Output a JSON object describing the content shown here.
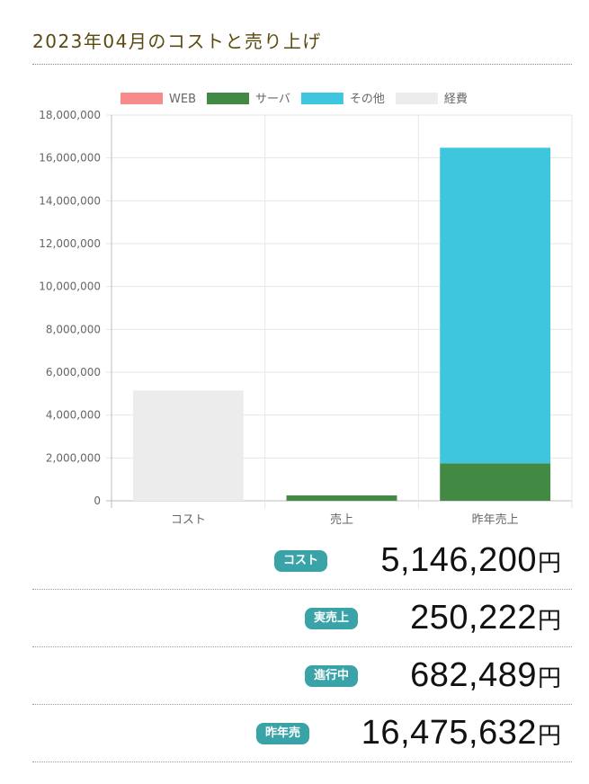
{
  "page": {
    "title": "2023年04月のコストと売り上げ"
  },
  "chart_data": {
    "type": "bar",
    "stacked": true,
    "categories": [
      "コスト",
      "売上",
      "昨年売上"
    ],
    "series": [
      {
        "name": "WEB",
        "color": "#f78b8b",
        "values": [
          0,
          0,
          0
        ]
      },
      {
        "name": "サーバ",
        "color": "#428a44",
        "values": [
          0,
          250222,
          1750000
        ]
      },
      {
        "name": "その他",
        "color": "#3ec6df",
        "values": [
          0,
          0,
          14725632
        ]
      },
      {
        "name": "経費",
        "color": "#ececec",
        "values": [
          5146200,
          0,
          0
        ]
      }
    ],
    "ylim": [
      0,
      18000000
    ],
    "yticks": [
      0,
      2000000,
      4000000,
      6000000,
      8000000,
      10000000,
      12000000,
      14000000,
      16000000,
      18000000
    ],
    "ytick_labels": [
      "0",
      "2,000,000",
      "4,000,000",
      "6,000,000",
      "8,000,000",
      "10,000,000",
      "12,000,000",
      "14,000,000",
      "16,000,000",
      "18,000,000"
    ],
    "legend_position": "top",
    "grid": true
  },
  "summary": [
    {
      "label": "コスト",
      "value": "5,146,200",
      "unit": "円"
    },
    {
      "label": "実売上",
      "value": "250,222",
      "unit": "円"
    },
    {
      "label": "進行中",
      "value": "682,489",
      "unit": "円"
    },
    {
      "label": "昨年売",
      "value": "16,475,632",
      "unit": "円"
    }
  ]
}
